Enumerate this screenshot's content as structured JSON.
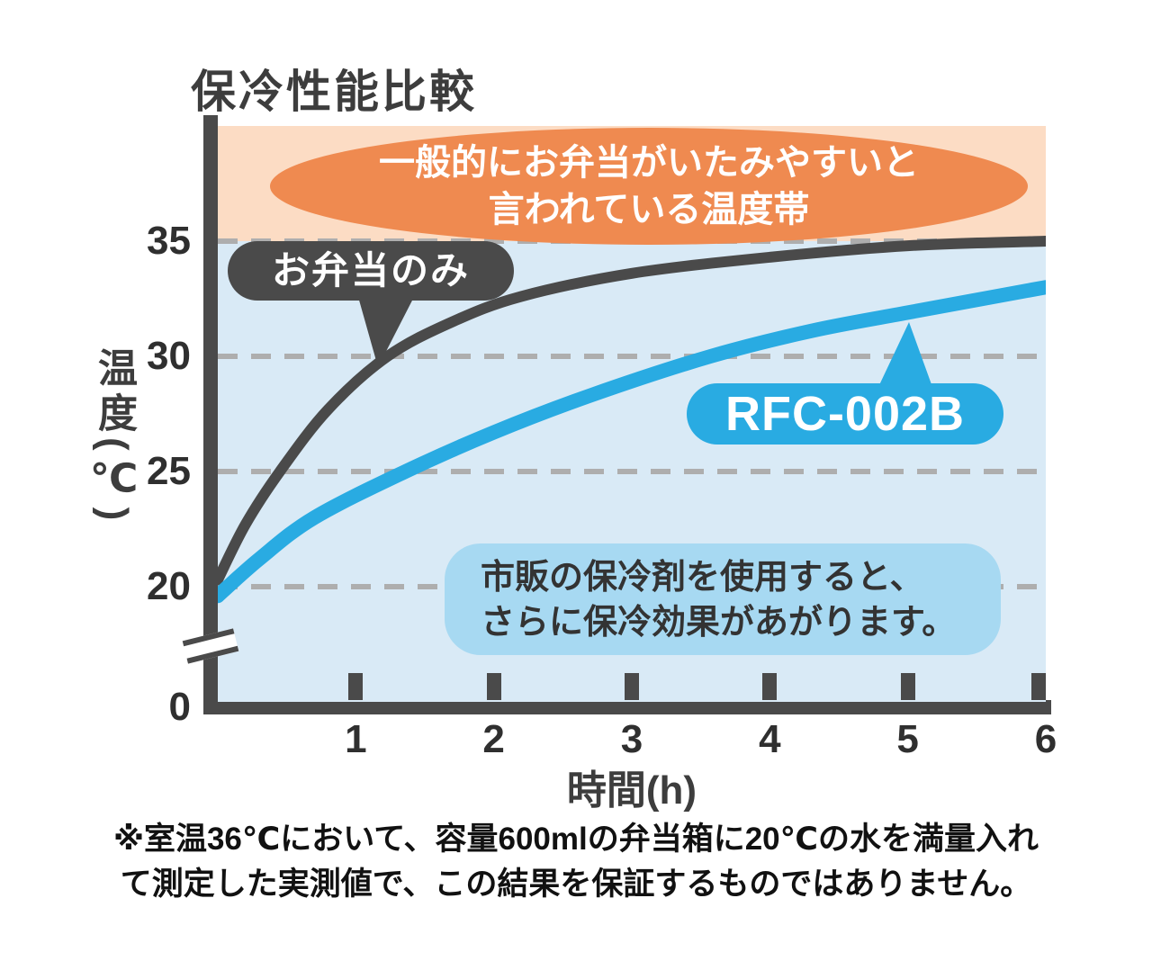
{
  "colors": {
    "axis_dark_gray": "#4a4a4a",
    "product_blue": "#29abe2",
    "plot_background_blue": "#d9eaf6",
    "danger_band_peach": "#fcdcc4",
    "danger_ellipse_orange": "#ef8a50",
    "tip_box_blue": "#a7d9f2",
    "gridline_gray": "#aeaeae"
  },
  "chart_data": {
    "type": "line",
    "title": "保冷性能比較",
    "xlabel": "時間(h)",
    "ylabel": "温度(℃)",
    "xlim": [
      0,
      6
    ],
    "ylim": [
      15,
      40
    ],
    "x_ticks": [
      1,
      2,
      3,
      4,
      5,
      6
    ],
    "y_ticks": [
      35,
      30,
      25,
      20
    ],
    "origin_label": "0",
    "gridlines": [
      35,
      30,
      25,
      20
    ],
    "grid_style": "dashed-horizontal",
    "y_axis_break": true,
    "legend_position": "none (labeled via callout bubbles)",
    "series": [
      {
        "name": "お弁当のみ",
        "color": "#4a4a4a",
        "x": [
          0,
          0.2,
          0.45,
          0.8,
          1.23,
          1.7,
          2.2,
          3,
          4,
          5,
          6
        ],
        "y": [
          20.3,
          22.7,
          25.0,
          27.7,
          30.0,
          31.5,
          32.6,
          33.6,
          34.3,
          34.8,
          35.0
        ]
      },
      {
        "name": "RFC-002B",
        "color": "#29abe2",
        "x": [
          0,
          0.3,
          0.7,
          1.36,
          2,
          2.7,
          3.57,
          4.3,
          5,
          6
        ],
        "y": [
          19.6,
          21.2,
          23.0,
          25.0,
          26.7,
          28.3,
          30.0,
          31.1,
          31.9,
          33.0
        ]
      }
    ],
    "annotations": {
      "danger_zone": {
        "lines": [
          "一般的にお弁当がいたみやすいと",
          "言われている温度帯"
        ]
      },
      "bento_label": {
        "text": "お弁当のみ"
      },
      "product_label": {
        "text": "RFC-002B"
      },
      "tip": {
        "lines": [
          "市販の保冷剤を使用すると、",
          "さらに保冷効果があがります。"
        ]
      }
    }
  },
  "footnote": {
    "line1": "※室温36℃において、容量600mlの弁当箱に20℃の水を満量入れ",
    "line2": "て測定した実測値で、この結果を保証するものではありません。"
  }
}
